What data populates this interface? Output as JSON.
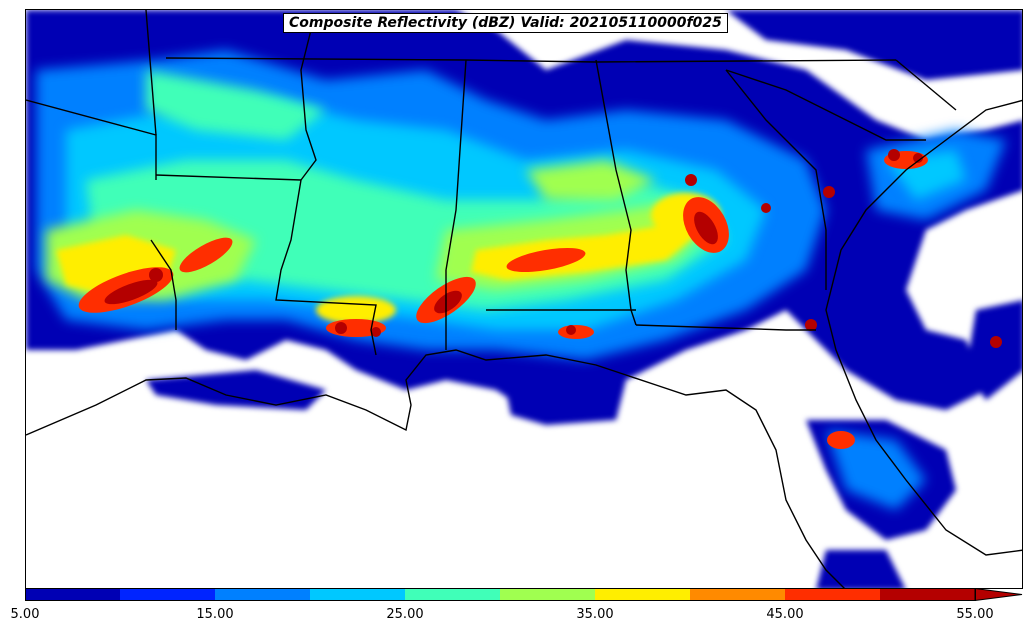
{
  "title": "Composite Reflectivity (dBZ) Valid: 202105110000f025",
  "colorbar": {
    "bins": [
      {
        "from": 5,
        "to": 10,
        "color": "#0000b4"
      },
      {
        "from": 10,
        "to": 15,
        "color": "#0024ff"
      },
      {
        "from": 15,
        "to": 20,
        "color": "#0080ff"
      },
      {
        "from": 20,
        "to": 25,
        "color": "#00c8ff"
      },
      {
        "from": 25,
        "to": 30,
        "color": "#40ffb8"
      },
      {
        "from": 30,
        "to": 35,
        "color": "#a0ff50"
      },
      {
        "from": 35,
        "to": 40,
        "color": "#ffee00"
      },
      {
        "from": 40,
        "to": 45,
        "color": "#ff8a00"
      },
      {
        "from": 45,
        "to": 50,
        "color": "#ff2e00"
      },
      {
        "from": 50,
        "to": 55,
        "color": "#b40000"
      }
    ],
    "extend": "max",
    "ticks": [
      "5.00",
      "15.00",
      "25.00",
      "35.00",
      "45.00",
      "55.00"
    ]
  }
}
